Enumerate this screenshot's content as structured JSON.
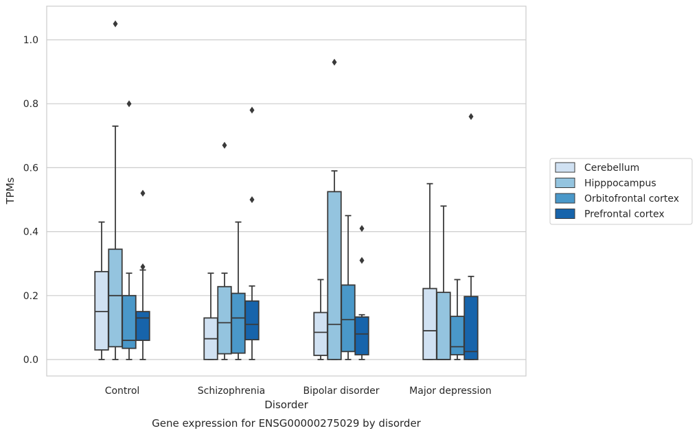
{
  "chart_data": {
    "type": "boxplot",
    "xlabel": "Disorder",
    "ylabel": "TPMs",
    "caption": "Gene expression for ENSG00000275029 by disorder",
    "ylim": [
      -0.05,
      1.11
    ],
    "yticks": [
      "0.0",
      "0.2",
      "0.4",
      "0.6",
      "0.8",
      "1.0"
    ],
    "ytick_values": [
      0.0,
      0.2,
      0.4,
      0.6,
      0.8,
      1.0
    ],
    "grid": "horizontal",
    "legend_position": "right",
    "categories": [
      "Control",
      "Schizophrenia",
      "Bipolar disorder",
      "Major depression"
    ],
    "series": [
      {
        "name": "Cerebellum",
        "color": "#d0e1f2",
        "boxes": [
          {
            "whislo": 0.0,
            "q1": 0.03,
            "med": 0.15,
            "q3": 0.275,
            "whishi": 0.43,
            "fliers": []
          },
          {
            "whislo": 0.0,
            "q1": 0.0,
            "med": 0.065,
            "q3": 0.13,
            "whishi": 0.27,
            "fliers": []
          },
          {
            "whislo": 0.0,
            "q1": 0.013,
            "med": 0.085,
            "q3": 0.147,
            "whishi": 0.25,
            "fliers": []
          },
          {
            "whislo": 0.0,
            "q1": 0.0,
            "med": 0.09,
            "q3": 0.222,
            "whishi": 0.55,
            "fliers": []
          }
        ]
      },
      {
        "name": "Hipppocampus",
        "color": "#94c4df",
        "boxes": [
          {
            "whislo": 0.0,
            "q1": 0.04,
            "med": 0.2,
            "q3": 0.345,
            "whishi": 0.73,
            "fliers": [
              1.05
            ]
          },
          {
            "whislo": 0.0,
            "q1": 0.018,
            "med": 0.115,
            "q3": 0.228,
            "whishi": 0.27,
            "fliers": [
              0.67
            ]
          },
          {
            "whislo": 0.0,
            "q1": 0.0,
            "med": 0.11,
            "q3": 0.525,
            "whishi": 0.59,
            "fliers": [
              0.93
            ]
          },
          {
            "whislo": 0.0,
            "q1": 0.0,
            "med": 0.0,
            "q3": 0.21,
            "whishi": 0.48,
            "fliers": []
          }
        ]
      },
      {
        "name": "Orbitofrontal cortex",
        "color": "#4a98c9",
        "boxes": [
          {
            "whislo": 0.0,
            "q1": 0.035,
            "med": 0.06,
            "q3": 0.2,
            "whishi": 0.27,
            "fliers": [
              0.8
            ]
          },
          {
            "whislo": 0.0,
            "q1": 0.02,
            "med": 0.13,
            "q3": 0.207,
            "whishi": 0.43,
            "fliers": []
          },
          {
            "whislo": 0.0,
            "q1": 0.025,
            "med": 0.125,
            "q3": 0.233,
            "whishi": 0.45,
            "fliers": []
          },
          {
            "whislo": 0.0,
            "q1": 0.015,
            "med": 0.04,
            "q3": 0.135,
            "whishi": 0.25,
            "fliers": []
          }
        ]
      },
      {
        "name": "Prefrontal cortex",
        "color": "#1764ab",
        "boxes": [
          {
            "whislo": 0.0,
            "q1": 0.06,
            "med": 0.13,
            "q3": 0.15,
            "whishi": 0.28,
            "fliers": [
              0.52,
              0.29
            ]
          },
          {
            "whislo": 0.0,
            "q1": 0.062,
            "med": 0.11,
            "q3": 0.183,
            "whishi": 0.23,
            "fliers": [
              0.78,
              0.5
            ]
          },
          {
            "whislo": 0.0,
            "q1": 0.015,
            "med": 0.08,
            "q3": 0.133,
            "whishi": 0.14,
            "fliers": [
              0.41,
              0.31
            ]
          },
          {
            "whislo": 0.0,
            "q1": 0.0,
            "med": 0.025,
            "q3": 0.197,
            "whishi": 0.26,
            "fliers": [
              0.76
            ]
          }
        ]
      }
    ]
  }
}
